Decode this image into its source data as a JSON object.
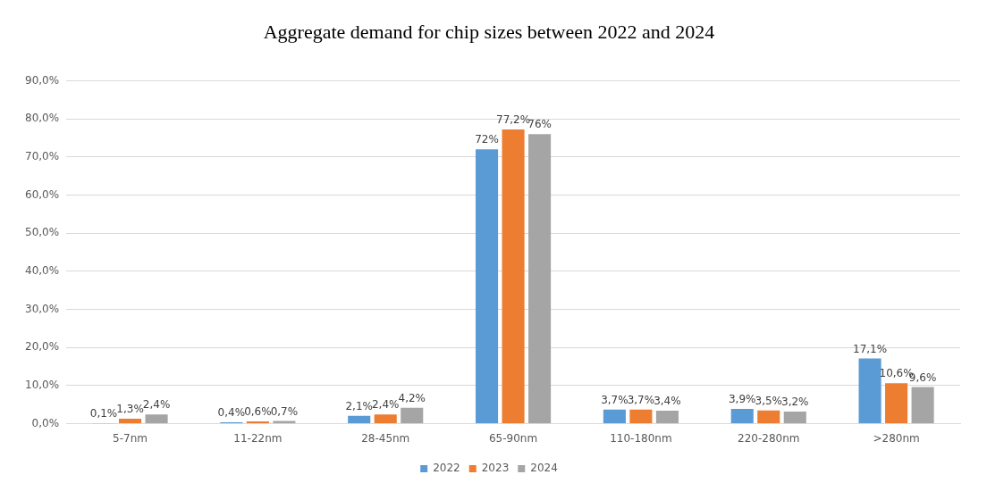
{
  "chart_data": {
    "type": "bar",
    "title": "Aggregate demand for chip sizes between 2022 and 2024",
    "categories": [
      "5-7nm",
      "11-22nm",
      "28-45nm",
      "65-90nm",
      "110-180nm",
      "220-280nm",
      ">280nm"
    ],
    "series": [
      {
        "name": "2022",
        "color": "#5b9bd5",
        "values": [
          0.1,
          0.4,
          2.1,
          72,
          3.7,
          3.9,
          17.1
        ],
        "value_labels": [
          "0,1%",
          "0,4%",
          "2,1%",
          "72%",
          "3,7%",
          "3,9%",
          "17,1%"
        ]
      },
      {
        "name": "2023",
        "color": "#ed7d31",
        "values": [
          1.3,
          0.6,
          2.4,
          77.2,
          3.7,
          3.5,
          10.6
        ],
        "value_labels": [
          "1,3%",
          "0,6%",
          "2,4%",
          "77,2%",
          "3,7%",
          "3,5%",
          "10,6%"
        ]
      },
      {
        "name": "2024",
        "color": "#a5a5a5",
        "values": [
          2.4,
          0.7,
          4.2,
          76,
          3.4,
          3.2,
          9.6
        ],
        "value_labels": [
          "2,4%",
          "0,7%",
          "4,2%",
          "76%",
          "3,4%",
          "3,2%",
          "9,6%"
        ]
      }
    ],
    "ylim": [
      0,
      90
    ],
    "yticks": [
      {
        "value": 0,
        "label": "0,0%"
      },
      {
        "value": 10,
        "label": "10,0%"
      },
      {
        "value": 20,
        "label": "20,0%"
      },
      {
        "value": 30,
        "label": "30,0%"
      },
      {
        "value": 40,
        "label": "40,0%"
      },
      {
        "value": 50,
        "label": "50,0%"
      },
      {
        "value": 60,
        "label": "60,0%"
      },
      {
        "value": 70,
        "label": "70,0%"
      },
      {
        "value": 80,
        "label": "80,0%"
      },
      {
        "value": 90,
        "label": "90,0%"
      }
    ],
    "grid": "y",
    "legend": "bottom"
  }
}
